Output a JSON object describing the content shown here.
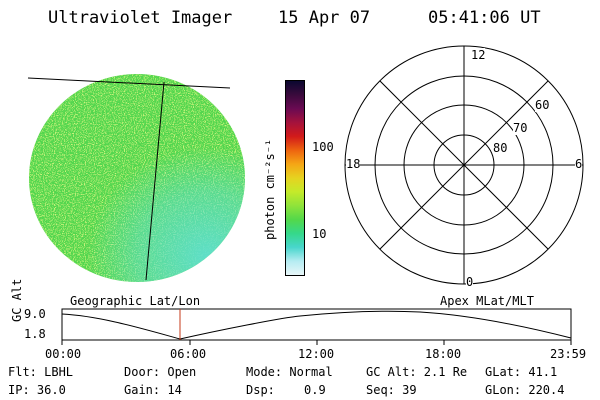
{
  "header": {
    "title": "Ultraviolet Imager",
    "date": "15 Apr 07",
    "time": "05:41:06 UT"
  },
  "colorbar": {
    "unit_label": "photon cm⁻²s⁻¹",
    "ticks": [
      "100",
      "10"
    ],
    "colors": [
      "#0b0830",
      "#3a0a3c",
      "#6a0a52",
      "#a5123c",
      "#d21a1a",
      "#ee6410",
      "#f5a615",
      "#e6d320",
      "#c4ea2a",
      "#8fe33a",
      "#53d84a",
      "#35d88a",
      "#48d6cc",
      "#b5ecf2",
      "#e8f6f8"
    ]
  },
  "left_panel": {
    "caption": "Geographic Lat/Lon",
    "disk_colors": {
      "main": "#52d64e",
      "speckle": "#9fe535",
      "edge": "#5fdfcf"
    }
  },
  "right_panel": {
    "caption": "Apex MLat/MLT",
    "mlt_labels": {
      "top": "12",
      "left": "18",
      "right": "6",
      "bottom": "0"
    },
    "lat_labels": [
      "60",
      "70",
      "80"
    ]
  },
  "altitude_plot": {
    "ylabel": "GC Alt",
    "y_ticks": [
      "9.0",
      "1.8"
    ],
    "x_ticks": [
      "00:00",
      "06:00",
      "12:00",
      "18:00",
      "23:59"
    ],
    "marker_color": "#c43a1a"
  },
  "footer": {
    "row1": {
      "flt": "Flt: LBHL",
      "door": "Door: Open",
      "mode": "Mode: Normal",
      "gcalt": "GC Alt: 2.1 Re",
      "glat": "GLat:  41.1"
    },
    "row2": {
      "ip": "IP: 36.0",
      "gain": "Gain: 14",
      "dsp_label": "Dsp:",
      "dsp_value": "0.9",
      "seq": "Seq: 39",
      "glon": "GLon: 220.4"
    }
  }
}
